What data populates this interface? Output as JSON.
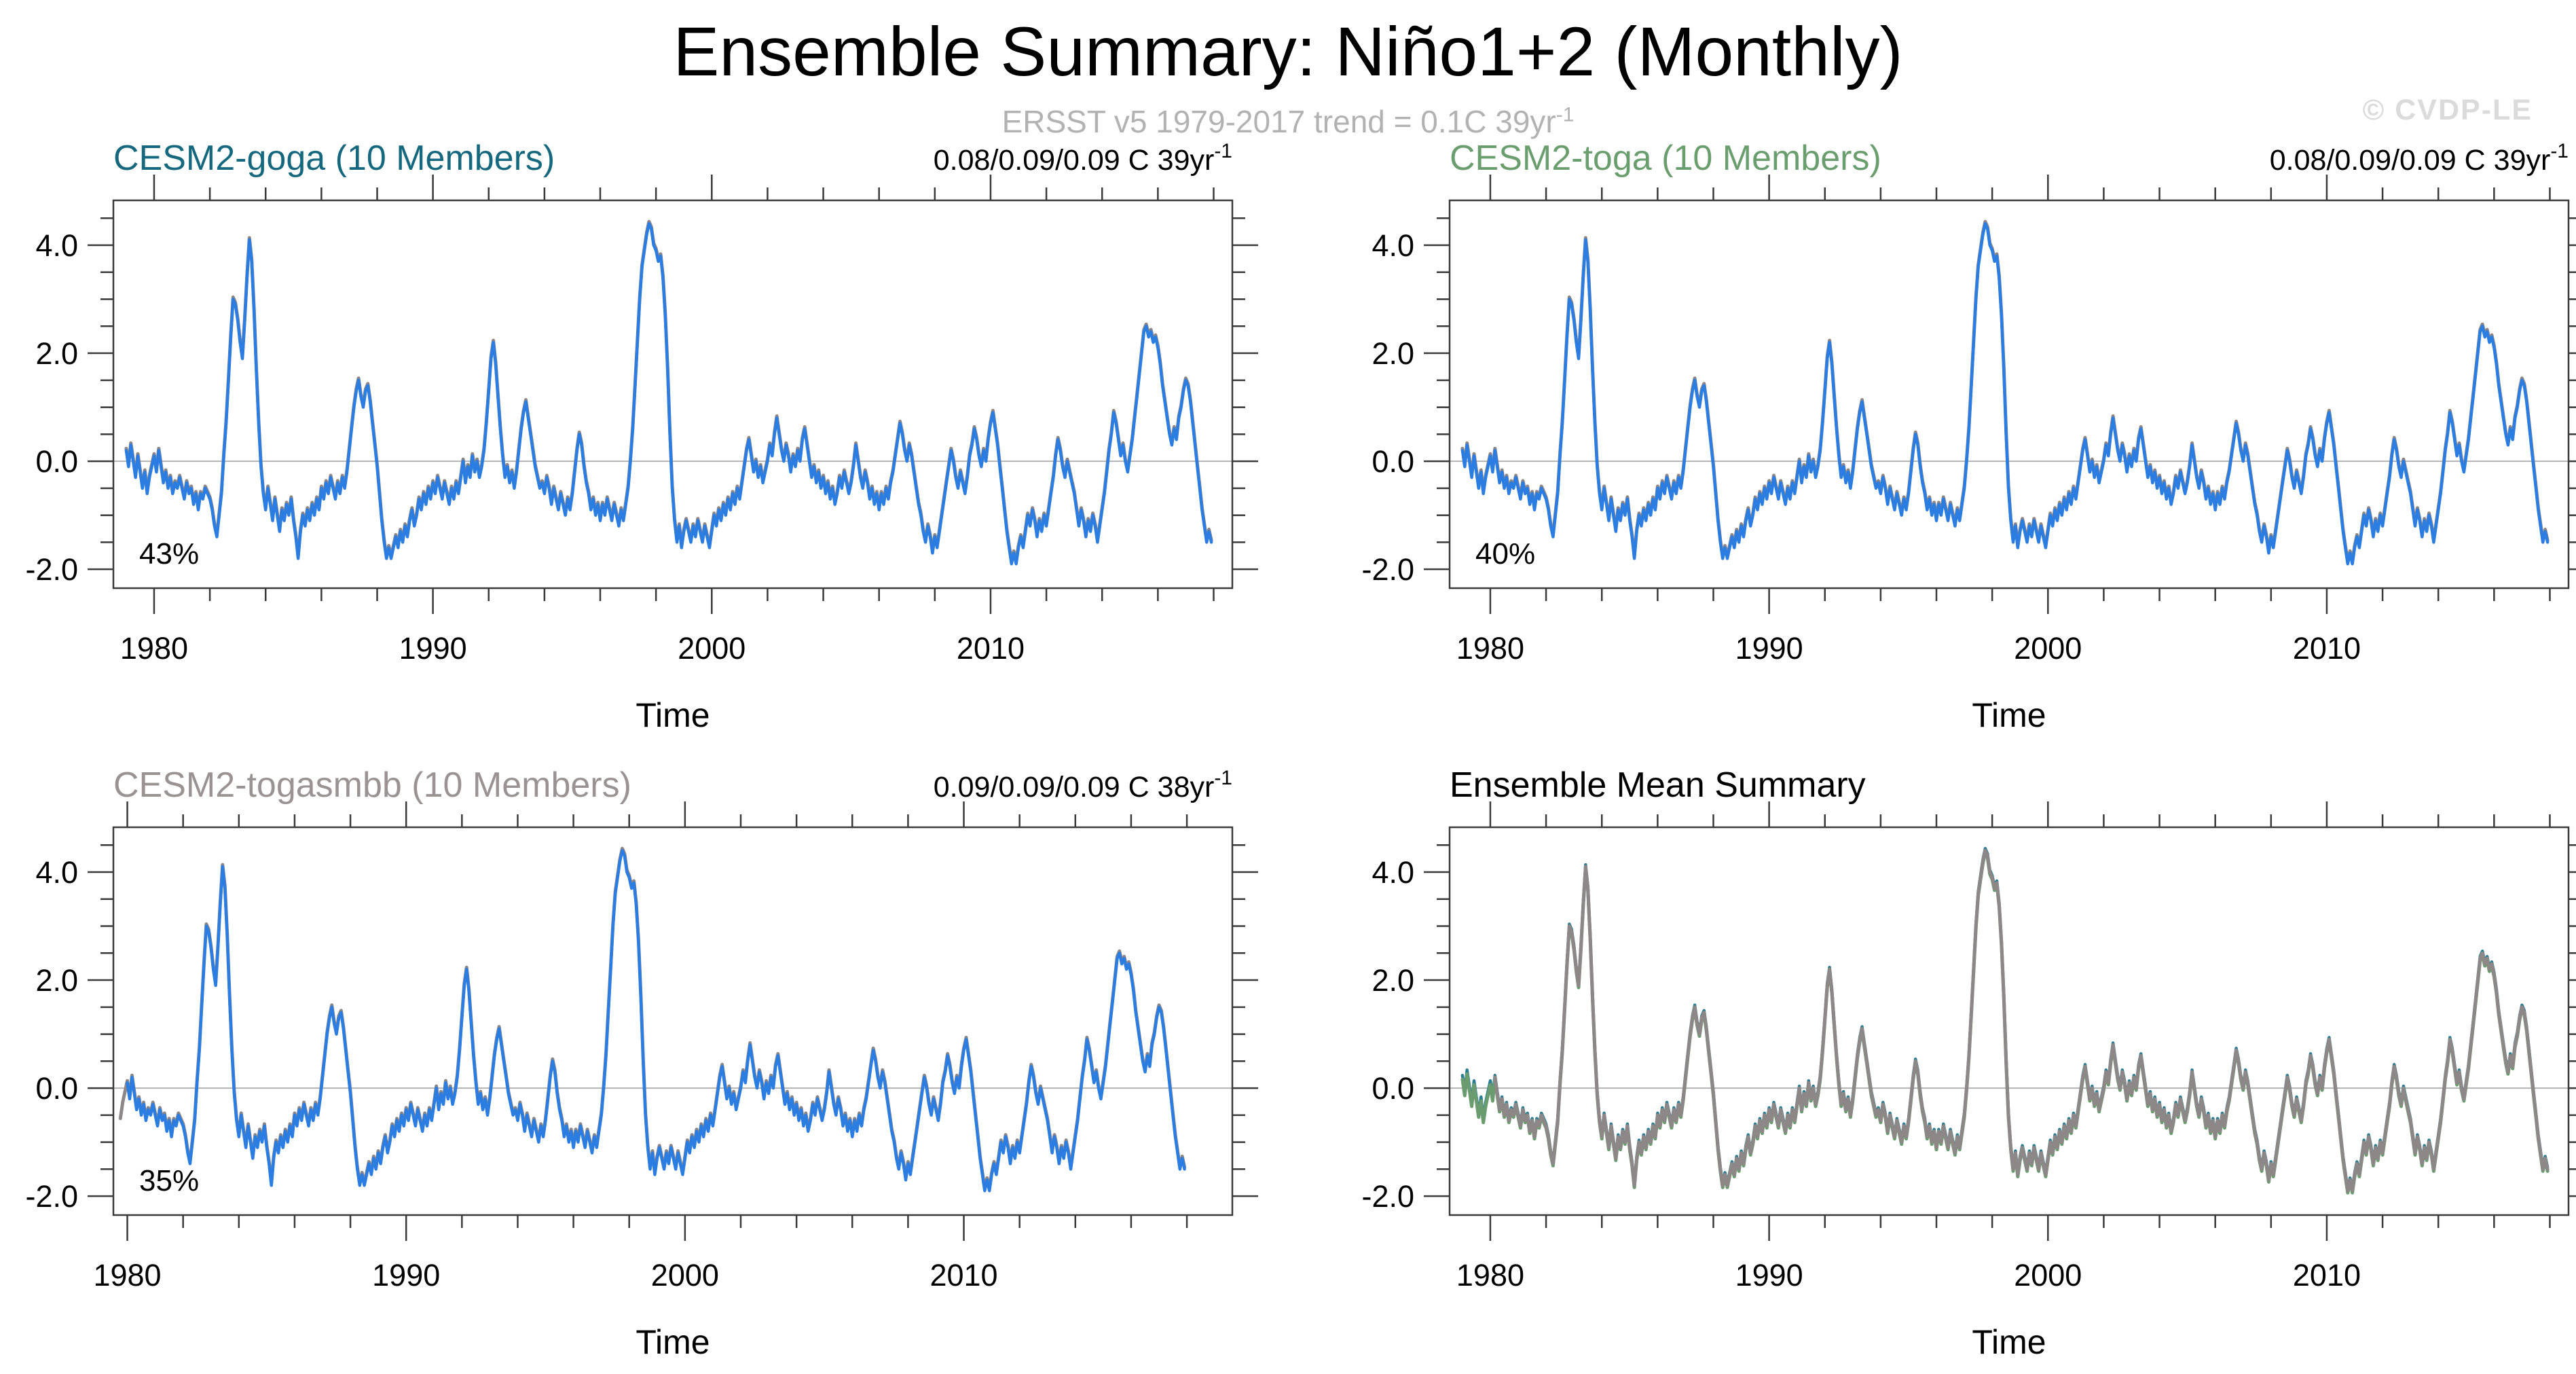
{
  "header": {
    "title": "Ensemble Summary: Niño1+2 (Monthly)",
    "subtitle_text": "ERSST v5 1979-2017 trend = 0.1C 39yr",
    "subtitle_exp": "-1",
    "watermark": "© CVDP-LE"
  },
  "colors": {
    "observed_blue": "#2b7de2",
    "ensemble_mean_gray": "#8e8787",
    "toga_green_line": "#6b9c6f",
    "goga_teal_line": "#2c7d92",
    "frame": "#3a3a3a",
    "zero_line": "#b3b3b3",
    "subtitle_gray": "#b2b2b2",
    "watermark_gray": "#dbdbdb"
  },
  "chart_data": {
    "type": "line",
    "x_axis": {
      "label": "Time",
      "major_ticks": [
        1980,
        1990,
        2000,
        2010
      ],
      "minor_step_years": 2
    },
    "y_axis": {
      "range": [
        -2.35,
        4.83
      ],
      "major_ticks": [
        -2.0,
        0.0,
        2.0,
        4.0
      ],
      "minor_step": 0.5,
      "zero_line": true
    },
    "series_monthly": {
      "name": "Nino1+2 SST anomaly (C), ERSST v5 observed / ensemble mean",
      "start_year": 1979.0,
      "samples_per_year": 12,
      "values": [
        0.2,
        -0.1,
        0.3,
        0.0,
        -0.3,
        0.1,
        -0.2,
        -0.5,
        -0.2,
        -0.6,
        -0.3,
        -0.1,
        0.1,
        -0.2,
        0.2,
        -0.1,
        -0.4,
        -0.2,
        -0.5,
        -0.3,
        -0.6,
        -0.4,
        -0.5,
        -0.3,
        -0.5,
        -0.7,
        -0.4,
        -0.6,
        -0.5,
        -0.8,
        -0.6,
        -0.9,
        -0.6,
        -0.7,
        -0.5,
        -0.6,
        -0.7,
        -0.9,
        -1.2,
        -1.4,
        -1.0,
        -0.6,
        0.1,
        0.7,
        1.5,
        2.3,
        3.0,
        2.9,
        2.6,
        2.2,
        1.9,
        2.6,
        3.4,
        4.1,
        3.7,
        2.8,
        1.7,
        0.7,
        -0.1,
        -0.6,
        -0.9,
        -0.5,
        -0.8,
        -1.1,
        -0.7,
        -1.0,
        -1.3,
        -0.9,
        -1.1,
        -0.8,
        -1.0,
        -0.7,
        -1.1,
        -1.4,
        -1.8,
        -1.3,
        -1.0,
        -1.2,
        -0.9,
        -1.1,
        -0.8,
        -1.0,
        -0.7,
        -0.9,
        -0.5,
        -0.7,
        -0.4,
        -0.6,
        -0.3,
        -0.5,
        -0.7,
        -0.4,
        -0.6,
        -0.3,
        -0.5,
        -0.2,
        0.2,
        0.6,
        1.0,
        1.3,
        1.5,
        1.2,
        1.0,
        1.3,
        1.4,
        1.1,
        0.7,
        0.3,
        -0.1,
        -0.6,
        -1.1,
        -1.5,
        -1.8,
        -1.6,
        -1.8,
        -1.6,
        -1.4,
        -1.6,
        -1.3,
        -1.5,
        -1.2,
        -1.4,
        -1.1,
        -0.9,
        -1.2,
        -1.0,
        -0.7,
        -0.9,
        -0.6,
        -0.8,
        -0.5,
        -0.7,
        -0.4,
        -0.6,
        -0.3,
        -0.5,
        -0.7,
        -0.4,
        -0.6,
        -0.8,
        -0.5,
        -0.7,
        -0.4,
        -0.6,
        -0.3,
        0.0,
        -0.4,
        -0.1,
        -0.3,
        0.1,
        -0.2,
        0.0,
        -0.3,
        -0.1,
        0.2,
        0.7,
        1.3,
        1.9,
        2.2,
        1.8,
        1.2,
        0.6,
        0.1,
        -0.3,
        -0.1,
        -0.4,
        -0.2,
        -0.5,
        -0.2,
        0.2,
        0.6,
        0.9,
        1.1,
        0.8,
        0.5,
        0.2,
        -0.1,
        -0.3,
        -0.5,
        -0.4,
        -0.6,
        -0.3,
        -0.5,
        -0.8,
        -0.5,
        -0.7,
        -0.9,
        -0.6,
        -0.8,
        -1.0,
        -0.7,
        -0.9,
        -0.6,
        -0.2,
        0.2,
        0.5,
        0.3,
        -0.1,
        -0.4,
        -0.6,
        -0.9,
        -0.7,
        -1.0,
        -0.8,
        -1.1,
        -0.8,
        -1.0,
        -0.7,
        -0.9,
        -1.1,
        -0.8,
        -1.0,
        -1.2,
        -0.9,
        -1.1,
        -0.8,
        -0.5,
        0.0,
        0.6,
        1.4,
        2.2,
        3.0,
        3.6,
        3.9,
        4.2,
        4.4,
        4.3,
        4.0,
        3.9,
        3.7,
        3.8,
        3.4,
        2.7,
        1.7,
        0.5,
        -0.5,
        -1.1,
        -1.5,
        -1.2,
        -1.6,
        -1.3,
        -1.1,
        -1.3,
        -1.5,
        -1.2,
        -1.4,
        -1.1,
        -1.3,
        -1.5,
        -1.2,
        -1.4,
        -1.6,
        -1.3,
        -1.0,
        -1.2,
        -0.9,
        -1.1,
        -0.8,
        -1.0,
        -0.7,
        -0.9,
        -0.6,
        -0.8,
        -0.5,
        -0.7,
        -0.4,
        -0.1,
        0.2,
        0.4,
        0.1,
        -0.2,
        0.0,
        -0.3,
        -0.1,
        -0.4,
        -0.2,
        0.0,
        0.3,
        0.1,
        0.5,
        0.8,
        0.5,
        0.2,
        0.0,
        0.3,
        0.1,
        -0.2,
        0.1,
        -0.1,
        0.2,
        0.0,
        0.4,
        0.6,
        0.3,
        0.0,
        -0.3,
        -0.1,
        -0.4,
        -0.2,
        -0.5,
        -0.3,
        -0.6,
        -0.4,
        -0.7,
        -0.5,
        -0.8,
        -0.6,
        -0.3,
        -0.5,
        -0.2,
        -0.4,
        -0.6,
        -0.4,
        -0.1,
        0.3,
        0.0,
        -0.3,
        -0.5,
        -0.2,
        -0.4,
        -0.7,
        -0.5,
        -0.8,
        -0.6,
        -0.9,
        -0.6,
        -0.8,
        -0.5,
        -0.7,
        -0.4,
        -0.2,
        0.1,
        0.4,
        0.7,
        0.5,
        0.2,
        0.0,
        0.3,
        0.1,
        -0.2,
        -0.5,
        -0.8,
        -1.0,
        -1.3,
        -1.5,
        -1.2,
        -1.4,
        -1.7,
        -1.4,
        -1.6,
        -1.3,
        -1.0,
        -0.7,
        -0.4,
        -0.1,
        0.2,
        0.0,
        -0.3,
        -0.5,
        -0.2,
        -0.4,
        -0.6,
        -0.3,
        0.1,
        0.3,
        0.6,
        0.4,
        0.1,
        -0.1,
        0.2,
        0.0,
        0.4,
        0.7,
        0.9,
        0.6,
        0.3,
        -0.1,
        -0.5,
        -0.9,
        -1.3,
        -1.6,
        -1.9,
        -1.7,
        -1.9,
        -1.6,
        -1.4,
        -1.6,
        -1.3,
        -1.0,
        -1.2,
        -0.9,
        -1.1,
        -1.4,
        -1.1,
        -1.3,
        -1.0,
        -1.2,
        -0.9,
        -0.6,
        -0.3,
        0.1,
        0.4,
        0.2,
        -0.1,
        -0.3,
        0.0,
        -0.2,
        -0.4,
        -0.6,
        -0.9,
        -1.2,
        -0.9,
        -1.1,
        -1.4,
        -1.1,
        -1.3,
        -1.0,
        -1.2,
        -1.5,
        -1.2,
        -0.9,
        -0.6,
        -0.2,
        0.2,
        0.5,
        0.9,
        0.7,
        0.4,
        0.1,
        0.3,
        0.0,
        -0.2,
        0.1,
        0.4,
        0.8,
        1.2,
        1.6,
        2.0,
        2.4,
        2.5,
        2.3,
        2.4,
        2.2,
        2.3,
        2.1,
        1.8,
        1.4,
        1.1,
        0.8,
        0.5,
        0.3,
        0.6,
        0.4,
        0.8,
        1.0,
        1.3,
        1.5,
        1.4,
        1.1,
        0.7,
        0.3,
        -0.1,
        -0.5,
        -0.9,
        -1.2,
        -1.5,
        -1.3,
        -1.5
      ]
    },
    "panels": [
      {
        "id": "goga",
        "title": "CESM2-goga (10 Members)",
        "title_color": "#15687e",
        "trend": "0.08/0.09/0.09 C 39yr",
        "trend_exp": "-1",
        "pct": "43%",
        "x_range": [
          1978.54,
          2018.67
        ],
        "series": [
          {
            "name": "ensemble-mean-line",
            "color": "#8e8787",
            "width": 5,
            "start_index": 0,
            "dy": -3
          },
          {
            "name": "observed-line",
            "color": "#2b7de2",
            "width": 4.5,
            "start_index": 0,
            "dy": 0
          }
        ]
      },
      {
        "id": "toga",
        "title": "CESM2-toga (10 Members)",
        "title_color": "#6a9e6e",
        "trend": "0.08/0.09/0.09 C 39yr",
        "trend_exp": "-1",
        "pct": "40%",
        "x_range": [
          1978.54,
          2018.67
        ],
        "series": [
          {
            "name": "ensemble-mean-line",
            "color": "#8e8787",
            "width": 5,
            "start_index": 0,
            "dy": -3
          },
          {
            "name": "observed-line",
            "color": "#2b7de2",
            "width": 4.5,
            "start_index": 0,
            "dy": 0
          }
        ]
      },
      {
        "id": "togasmbb",
        "title": "CESM2-togasmbb (10 Members)",
        "title_color": "#9b9292",
        "trend": "0.09/0.09/0.09 C 38yr",
        "trend_exp": "-1",
        "pct": "35%",
        "x_range": [
          1979.5,
          2019.63
        ],
        "series": [
          {
            "name": "ensemble-mean-line",
            "color": "#8e8787",
            "width": 5,
            "start_index": 9,
            "dy": -3
          },
          {
            "name": "observed-line",
            "color": "#2b7de2",
            "width": 4.5,
            "start_index": 12,
            "dy": 0
          }
        ]
      },
      {
        "id": "ensemble-mean-summary",
        "title": "Ensemble Mean Summary",
        "title_color": "#000000",
        "trend": "",
        "trend_exp": "",
        "pct": "",
        "x_range": [
          1978.54,
          2018.67
        ],
        "series": [
          {
            "name": "goga-mean-line",
            "color": "#2c7d92",
            "width": 4.5,
            "start_index": 0,
            "dy": -3
          },
          {
            "name": "toga-mean-line",
            "color": "#6b9c6f",
            "width": 5,
            "start_index": 0,
            "dy": 3
          },
          {
            "name": "togasmbb-mean-line",
            "color": "#8e8787",
            "width": 5,
            "start_index": 14,
            "dy": 0
          }
        ]
      }
    ]
  }
}
